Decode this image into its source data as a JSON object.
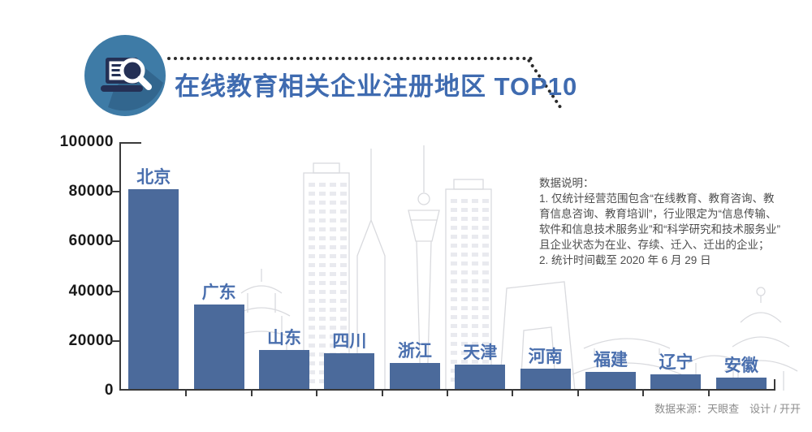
{
  "header": {
    "title": "在线教育相关企业注册地区 TOP10",
    "icon": "laptop-search-icon"
  },
  "chart_data": {
    "type": "bar",
    "title": "在线教育相关企业注册地区 TOP10",
    "categories": [
      "北京",
      "广东",
      "山东",
      "四川",
      "浙江",
      "天津",
      "河南",
      "福建",
      "辽宁",
      "安徽"
    ],
    "values": [
      81000,
      34600,
      16300,
      15000,
      11100,
      10400,
      8800,
      7500,
      6500,
      5200
    ],
    "xlabel": "",
    "ylabel": "",
    "ylim": [
      0,
      100000
    ],
    "y_ticks": [
      100000,
      80000,
      60000,
      40000,
      20000,
      0
    ],
    "grid": false,
    "legend": "none",
    "bar_label_position": "above-bar",
    "background_art": "city-skyline-outline"
  },
  "notes": {
    "text": "数据说明：\n1. 仅统计经营范围包含“在线教育、教育咨询、教\n育信息咨询、教育培训”，行业限定为“信息传输、\n软件和信息技术服务业”和“科学研究和技术服务业”\n且企业状态为在业、存续、迁入、迁出的企业；\n2. 统计时间截至 2020 年 6 月 29 日"
  },
  "footer": {
    "credit": "数据来源：天眼查　设计 / 开开"
  },
  "colors": {
    "bar_fill": "#4b6a9b",
    "category_label": "#4a6fae",
    "title_text": "#3f6bb0",
    "axis_line": "#3a3a3a",
    "axis_tick_label": "#1a1a1a",
    "notes_text": "#4d4d4d",
    "footer_text": "#8c8c8c",
    "dotted_line": "#2b2b2b",
    "badge_circle": "#3e7ba6",
    "badge_shadow": "#2f5f86",
    "badge_laptop": "#243055",
    "skyline_outline": "#d9dade",
    "skyline_windows": "#e9eaef"
  }
}
